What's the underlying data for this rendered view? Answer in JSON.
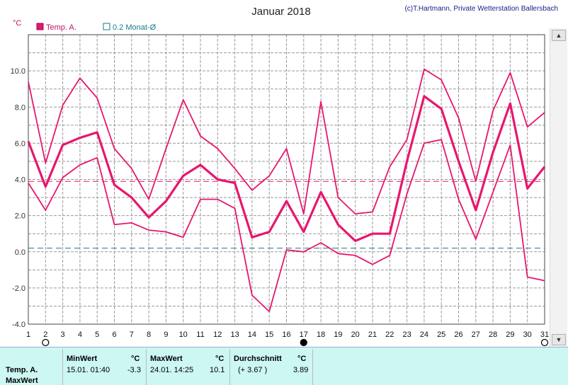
{
  "header": {
    "title": "Januar 2018",
    "credit": "(c)T.Hartmann, Private Wetterstation Ballersbach",
    "unit": "°C"
  },
  "legend": [
    {
      "label": "Temp. A.",
      "color": "#e8166e",
      "filled": true
    },
    {
      "label": "0.2 Monat-Ø",
      "color": "#1a7a8a",
      "filled": false
    }
  ],
  "chart_data": {
    "type": "line",
    "x": [
      1,
      2,
      3,
      4,
      5,
      6,
      7,
      8,
      9,
      10,
      11,
      12,
      13,
      14,
      15,
      16,
      17,
      18,
      19,
      20,
      21,
      22,
      23,
      24,
      25,
      26,
      27,
      28,
      29,
      30,
      31
    ],
    "x_tick_labels": [
      "1",
      "2",
      "3",
      "4",
      "5",
      "6",
      "7",
      "8",
      "9",
      "10",
      "11",
      "12",
      "13",
      "14",
      "15",
      "16",
      "17",
      "18",
      "19",
      "20",
      "21",
      "22",
      "23",
      "24",
      "25",
      "26",
      "27",
      "28",
      "29",
      "30",
      "31"
    ],
    "ylim": [
      -4,
      12
    ],
    "y_ticks": [
      -4,
      -2,
      0,
      2,
      4,
      6,
      8,
      10
    ],
    "y_tick_labels": [
      "-4.0",
      "-2.0",
      "0.0",
      "2.0",
      "4.0",
      "6.0",
      "8.0",
      "10.0"
    ],
    "grid": true,
    "legend_position": "top-left",
    "series": [
      {
        "role": "max",
        "color": "#e8166e",
        "values": [
          9.4,
          4.9,
          8.1,
          9.6,
          8.5,
          5.7,
          4.6,
          2.9,
          5.7,
          8.4,
          6.4,
          5.7,
          4.6,
          3.4,
          4.2,
          5.7,
          2.1,
          8.3,
          3.0,
          2.1,
          2.2,
          4.7,
          6.2,
          10.1,
          9.5,
          7.4,
          3.9,
          7.8,
          9.9,
          6.9,
          7.7
        ]
      },
      {
        "name": "Temp. A.",
        "role": "mean",
        "color": "#e8166e",
        "values": [
          6.1,
          3.6,
          5.9,
          6.3,
          6.6,
          3.7,
          3.0,
          1.9,
          2.8,
          4.2,
          4.8,
          4.0,
          3.8,
          0.8,
          1.1,
          2.8,
          1.1,
          3.3,
          1.5,
          0.6,
          1.0,
          1.0,
          5.0,
          8.6,
          7.9,
          5.0,
          2.3,
          5.5,
          8.2,
          3.5,
          4.7
        ]
      },
      {
        "role": "min",
        "color": "#e8166e",
        "values": [
          3.8,
          2.3,
          4.1,
          4.8,
          5.2,
          1.5,
          1.6,
          1.2,
          1.1,
          0.8,
          2.9,
          2.9,
          2.4,
          -2.4,
          -3.3,
          0.1,
          0.0,
          0.5,
          -0.1,
          -0.2,
          -0.7,
          -0.2,
          3.2,
          6.0,
          6.2,
          2.9,
          0.7,
          3.3,
          5.9,
          -1.4,
          -1.6
        ]
      }
    ],
    "reference_lines": [
      {
        "value": 3.89,
        "color": "#e8166e"
      },
      {
        "value": 0.2,
        "color": "#1a7a8a"
      }
    ],
    "moon_markers": [
      {
        "day": 2,
        "phase": "full"
      },
      {
        "day": 17,
        "phase": "new"
      },
      {
        "day": 31,
        "phase": "full"
      }
    ]
  },
  "stats": {
    "row1_label": "Temp. A.",
    "row2_label": "MaxWert",
    "min_header": "MinWert",
    "max_header": "MaxWert",
    "avg_header": "Durchschnitt",
    "unit_header": "°C",
    "min_time": "15.01.  01:40",
    "min_value": "-3.3",
    "max_time": "24.01.  14:25",
    "max_value": "10.1",
    "avg_diff": "(+ 3.67 )",
    "avg_value": "3.89"
  }
}
